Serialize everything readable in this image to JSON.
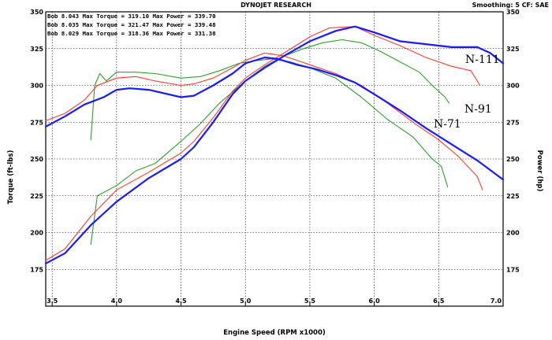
{
  "header": {
    "title": "DYNOJET RESEARCH",
    "smoothing": "Smoothing: 5  CF: SAE"
  },
  "legend_lines": [
    "Bob 8.043 Max Torque = 319.10 Max Power = 339.70",
    "Bob 8.035 Max Torque = 321.47 Max Power = 339.48",
    "Bob 8.029 Max Torque = 318.36 Max Power = 331.38"
  ],
  "callouts": [
    "N-111",
    "N-91",
    "N-71"
  ],
  "chart_data": {
    "type": "line",
    "xlabel": "Engine Speed (RPM x1000)",
    "ylabel_left": "Torque (ft-lbs)",
    "ylabel_right": "Power (hp)",
    "xlim": [
      3.45,
      7.0
    ],
    "ylim": [
      150,
      350
    ],
    "x_ticks": [
      "3.5",
      "4.0",
      "4.5",
      "5.0",
      "5.5",
      "6.0",
      "6.5",
      "7.0"
    ],
    "y_ticks": [
      "175",
      "200",
      "225",
      "250",
      "275",
      "300",
      "325",
      "350"
    ],
    "grid": true,
    "series": [
      {
        "name": "N-111",
        "color": "#1a1aff",
        "torque": [
          [
            3.45,
            272
          ],
          [
            3.6,
            279
          ],
          [
            3.75,
            287
          ],
          [
            3.9,
            292
          ],
          [
            4.0,
            297
          ],
          [
            4.1,
            298
          ],
          [
            4.25,
            297
          ],
          [
            4.5,
            292
          ],
          [
            4.6,
            293
          ],
          [
            4.75,
            300
          ],
          [
            4.9,
            308
          ],
          [
            5.0,
            315
          ],
          [
            5.15,
            319
          ],
          [
            5.25,
            318
          ],
          [
            5.4,
            314
          ],
          [
            5.55,
            311
          ],
          [
            5.7,
            307
          ],
          [
            5.85,
            302
          ],
          [
            6.0,
            294
          ],
          [
            6.2,
            283
          ],
          [
            6.4,
            271
          ],
          [
            6.6,
            260
          ],
          [
            6.8,
            249
          ],
          [
            7.0,
            236
          ]
        ],
        "power": [
          [
            3.45,
            179
          ],
          [
            3.6,
            186
          ],
          [
            3.8,
            205
          ],
          [
            4.0,
            221
          ],
          [
            4.25,
            237
          ],
          [
            4.5,
            250
          ],
          [
            4.6,
            258
          ],
          [
            4.75,
            275
          ],
          [
            4.9,
            294
          ],
          [
            5.0,
            303
          ],
          [
            5.15,
            312
          ],
          [
            5.3,
            320
          ],
          [
            5.5,
            330
          ],
          [
            5.7,
            337
          ],
          [
            5.85,
            340
          ],
          [
            6.0,
            336
          ],
          [
            6.2,
            330
          ],
          [
            6.4,
            328
          ],
          [
            6.6,
            326
          ],
          [
            6.8,
            326
          ],
          [
            6.9,
            322
          ],
          [
            7.0,
            315
          ]
        ]
      },
      {
        "name": "N-91",
        "color": "#ff3c2e",
        "torque": [
          [
            3.45,
            276
          ],
          [
            3.6,
            281
          ],
          [
            3.75,
            290
          ],
          [
            3.85,
            300
          ],
          [
            4.0,
            305
          ],
          [
            4.15,
            306
          ],
          [
            4.3,
            303
          ],
          [
            4.5,
            300
          ],
          [
            4.6,
            301
          ],
          [
            4.75,
            305
          ],
          [
            4.9,
            312
          ],
          [
            5.0,
            317
          ],
          [
            5.15,
            322
          ],
          [
            5.3,
            320
          ],
          [
            5.5,
            314
          ],
          [
            5.7,
            308
          ],
          [
            5.9,
            300
          ],
          [
            6.1,
            288
          ],
          [
            6.3,
            275
          ],
          [
            6.5,
            263
          ],
          [
            6.65,
            252
          ],
          [
            6.8,
            238
          ],
          [
            6.84,
            229
          ]
        ],
        "power": [
          [
            3.45,
            181
          ],
          [
            3.6,
            189
          ],
          [
            3.8,
            211
          ],
          [
            4.0,
            229
          ],
          [
            4.25,
            241
          ],
          [
            4.5,
            254
          ],
          [
            4.6,
            262
          ],
          [
            4.75,
            278
          ],
          [
            4.9,
            296
          ],
          [
            5.0,
            305
          ],
          [
            5.15,
            314
          ],
          [
            5.3,
            322
          ],
          [
            5.5,
            333
          ],
          [
            5.65,
            339
          ],
          [
            5.85,
            340
          ],
          [
            6.0,
            334
          ],
          [
            6.2,
            327
          ],
          [
            6.4,
            319
          ],
          [
            6.6,
            313
          ],
          [
            6.75,
            310
          ],
          [
            6.82,
            300
          ]
        ]
      },
      {
        "name": "N-71",
        "color": "#2e9e2e",
        "torque": [
          [
            3.8,
            263
          ],
          [
            3.83,
            300
          ],
          [
            3.87,
            308
          ],
          [
            3.92,
            303
          ],
          [
            4.0,
            309
          ],
          [
            4.15,
            309
          ],
          [
            4.3,
            308
          ],
          [
            4.5,
            305
          ],
          [
            4.65,
            306
          ],
          [
            4.8,
            310
          ],
          [
            4.95,
            315
          ],
          [
            5.1,
            317
          ],
          [
            5.2,
            318
          ],
          [
            5.35,
            316
          ],
          [
            5.5,
            312
          ],
          [
            5.7,
            305
          ],
          [
            5.9,
            292
          ],
          [
            6.1,
            277
          ],
          [
            6.3,
            265
          ],
          [
            6.45,
            250
          ],
          [
            6.52,
            245
          ],
          [
            6.57,
            231
          ]
        ],
        "power": [
          [
            3.8,
            192
          ],
          [
            3.85,
            225
          ],
          [
            4.0,
            232
          ],
          [
            4.15,
            242
          ],
          [
            4.3,
            247
          ],
          [
            4.5,
            262
          ],
          [
            4.65,
            274
          ],
          [
            4.8,
            288
          ],
          [
            5.0,
            303
          ],
          [
            5.15,
            313
          ],
          [
            5.3,
            320
          ],
          [
            5.45,
            325
          ],
          [
            5.6,
            329
          ],
          [
            5.75,
            331
          ],
          [
            5.9,
            329
          ],
          [
            6.05,
            323
          ],
          [
            6.2,
            316
          ],
          [
            6.35,
            309
          ],
          [
            6.45,
            300
          ],
          [
            6.55,
            292
          ],
          [
            6.58,
            288
          ]
        ]
      }
    ]
  }
}
